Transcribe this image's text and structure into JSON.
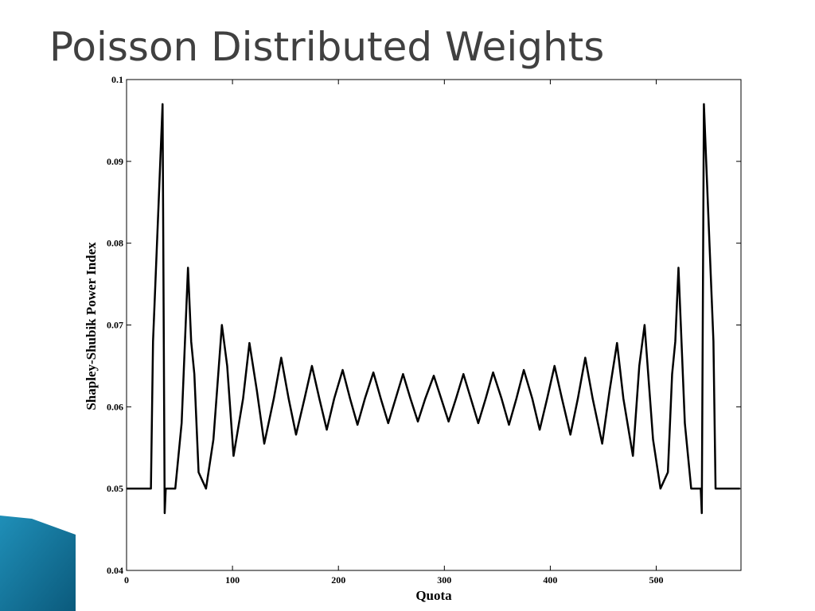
{
  "chart_data": {
    "type": "line",
    "title": "Poisson Distributed Weights",
    "xlabel": "Quota",
    "ylabel": "Shapley-Shubik Power Index",
    "xlim": [
      0,
      580
    ],
    "ylim": [
      0.04,
      0.1
    ],
    "xticks": [
      0,
      100,
      200,
      300,
      400,
      500
    ],
    "yticks": [
      0.04,
      0.05,
      0.06,
      0.07,
      0.08,
      0.09,
      0.1
    ],
    "color": "#000000",
    "x": [
      0,
      23,
      25,
      30,
      34,
      36,
      37,
      46,
      52,
      58,
      61,
      64,
      68,
      75,
      82,
      90,
      95,
      101,
      110,
      116,
      123,
      130,
      139,
      146,
      153,
      160,
      168,
      175,
      182,
      189,
      196,
      204,
      211,
      218,
      225,
      233,
      240,
      247,
      254,
      261,
      268,
      275,
      282,
      290,
      297,
      304,
      311,
      318,
      325,
      332,
      339,
      346,
      354,
      361,
      368,
      375,
      383,
      390,
      397,
      404,
      411,
      419,
      426,
      433,
      440,
      449,
      456,
      463,
      469,
      478,
      484,
      489,
      497,
      504,
      511,
      515,
      518,
      521,
      527,
      533,
      542,
      543,
      545,
      549,
      554,
      556,
      579
    ],
    "values": [
      0.05,
      0.05,
      0.068,
      0.084,
      0.097,
      0.047,
      0.05,
      0.05,
      0.058,
      0.077,
      0.068,
      0.064,
      0.052,
      0.05,
      0.056,
      0.07,
      0.065,
      0.054,
      0.061,
      0.0678,
      0.062,
      0.0555,
      0.061,
      0.066,
      0.061,
      0.0566,
      0.061,
      0.065,
      0.061,
      0.0572,
      0.061,
      0.0645,
      0.061,
      0.0578,
      0.061,
      0.0642,
      0.061,
      0.058,
      0.061,
      0.064,
      0.061,
      0.0582,
      0.061,
      0.0638,
      0.061,
      0.0582,
      0.061,
      0.064,
      0.061,
      0.058,
      0.061,
      0.0642,
      0.061,
      0.0578,
      0.061,
      0.0645,
      0.061,
      0.0572,
      0.061,
      0.065,
      0.061,
      0.0566,
      0.061,
      0.066,
      0.061,
      0.0555,
      0.062,
      0.0678,
      0.061,
      0.054,
      0.065,
      0.07,
      0.056,
      0.05,
      0.052,
      0.064,
      0.068,
      0.077,
      0.058,
      0.05,
      0.05,
      0.047,
      0.097,
      0.084,
      0.068,
      0.05,
      0.05
    ]
  }
}
